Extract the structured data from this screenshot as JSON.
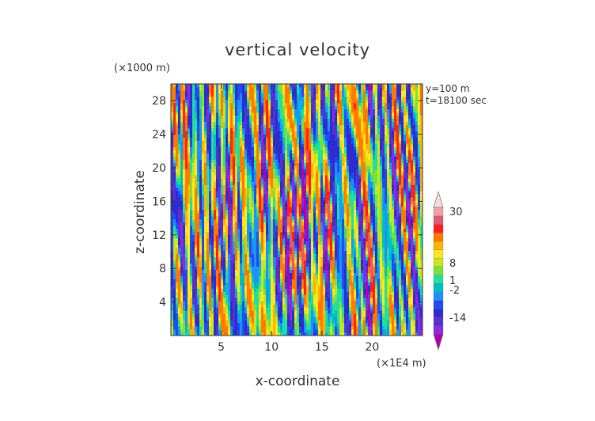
{
  "chart_data": {
    "type": "heatmap",
    "title": "vertical velocity",
    "xlabel": "x-coordinate",
    "ylabel": "z-coordinate",
    "x_unit_label": "(×1E4 m)",
    "y_unit_label": "(×1000 m)",
    "x_ticks": [
      5,
      10,
      15,
      20
    ],
    "y_ticks": [
      4,
      8,
      12,
      16,
      20,
      24,
      28
    ],
    "xlim": [
      0,
      25
    ],
    "ylim": [
      0,
      30
    ],
    "annotations": [
      "y=100 m",
      "t=18100 sec"
    ],
    "colorbar": {
      "tick_labels": [
        "30",
        "8",
        "1",
        "-2",
        "-14"
      ],
      "tick_values": [
        30,
        8,
        1,
        -2,
        -14
      ],
      "levels": [
        -20,
        -14,
        -10,
        -6,
        -4,
        -2,
        -1,
        1,
        2,
        4,
        6,
        8,
        14,
        20,
        30
      ],
      "colors": [
        "#b000b0",
        "#8a2be2",
        "#5a2fd0",
        "#2c2cd0",
        "#1e4ef0",
        "#1e90ff",
        "#00bfbf",
        "#20e0a0",
        "#7fe03c",
        "#c8e61e",
        "#ffe61e",
        "#ffb400",
        "#ff7800",
        "#ff1e1e",
        "#e05a6e",
        "#f0a0a8",
        "#f8dcdc"
      ],
      "extend": "both"
    }
  }
}
